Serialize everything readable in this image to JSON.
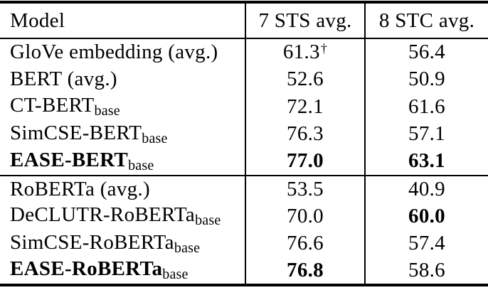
{
  "page": {
    "background": "#ffffff"
  },
  "table": {
    "columns": [
      "Model",
      "7 STS avg.",
      "8 STC avg."
    ],
    "colors": {
      "text": "#000000",
      "rule": "#000000",
      "background": "#ffffff"
    },
    "groups": [
      {
        "rows": [
          {
            "model": "GloVe embedding (avg.)",
            "sts": "61.3",
            "sts_sup": "†",
            "stc": "56.4"
          },
          {
            "model": "BERT (avg.)",
            "sts": "52.6",
            "stc": "50.9"
          },
          {
            "model": "CT-BERT",
            "sub": "base",
            "sts": "72.1",
            "stc": "61.6"
          },
          {
            "model": "SimCSE-BERT",
            "sub": "base",
            "sts": "76.3",
            "stc": "57.1"
          },
          {
            "model": "EASE-BERT",
            "sub": "base",
            "sts": "77.0",
            "stc": "63.1"
          }
        ]
      },
      {
        "rows": [
          {
            "model": "RoBERTa (avg.)",
            "sts": "53.5",
            "stc": "40.9"
          },
          {
            "model": "DeCLUTR-RoBERTa",
            "sub": "base",
            "sts": "70.0",
            "stc": "60.0"
          },
          {
            "model": "SimCSE-RoBERTa",
            "sub": "base",
            "sts": "76.6",
            "stc": "57.4"
          },
          {
            "model": "EASE-RoBERTa",
            "sub": "base",
            "sts": "76.8",
            "stc": "58.6"
          }
        ]
      }
    ]
  }
}
